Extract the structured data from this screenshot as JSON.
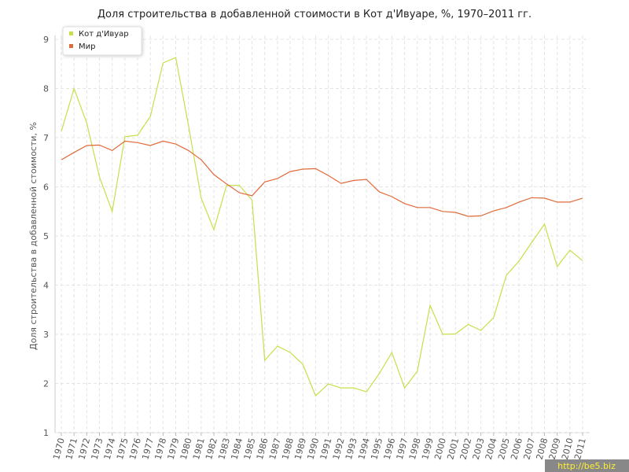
{
  "chart_data": {
    "type": "line",
    "title": "Доля строительства в добавленной стоимости в Кот д'Ивуаре, %, 1970–2011 гг.",
    "y_label": "Доля строительства в добавленной стоимости, %",
    "watermark": "http://be5.biz",
    "x": [
      1970,
      1971,
      1972,
      1973,
      1974,
      1975,
      1976,
      1977,
      1978,
      1979,
      1980,
      1981,
      1982,
      1983,
      1984,
      1985,
      1986,
      1987,
      1988,
      1989,
      1990,
      1991,
      1992,
      1993,
      1994,
      1995,
      1996,
      1997,
      1998,
      1999,
      2000,
      2001,
      2002,
      2003,
      2004,
      2005,
      2006,
      2007,
      2008,
      2009,
      2010,
      2011
    ],
    "xlim": [
      1970,
      2011
    ],
    "xticks": [
      1970,
      1971,
      1972,
      1973,
      1974,
      1975,
      1976,
      1977,
      1978,
      1979,
      1980,
      1981,
      1982,
      1983,
      1984,
      1985,
      1986,
      1987,
      1988,
      1989,
      1990,
      1991,
      1992,
      1993,
      1994,
      1995,
      1996,
      1997,
      1998,
      1999,
      2000,
      2001,
      2002,
      2003,
      2004,
      2005,
      2006,
      2007,
      2008,
      2009,
      2010,
      2011
    ],
    "ylim": [
      1,
      9
    ],
    "yticks": [
      1,
      2,
      3,
      4,
      5,
      6,
      7,
      8,
      9
    ],
    "grid": true,
    "legend": "top-left",
    "series": [
      {
        "name": "Кот д'Ивуар",
        "color": "#c5e04a",
        "values": [
          7.13,
          8.0,
          7.3,
          6.2,
          5.5,
          7.02,
          7.05,
          7.43,
          8.52,
          8.63,
          7.25,
          5.77,
          5.13,
          6.03,
          6.03,
          5.73,
          2.47,
          2.76,
          2.63,
          2.39,
          1.75,
          1.99,
          1.91,
          1.91,
          1.83,
          2.2,
          2.63,
          1.91,
          2.25,
          3.59,
          3.0,
          3.01,
          3.2,
          3.08,
          3.34,
          4.2,
          4.49,
          4.87,
          5.24,
          4.38,
          4.71,
          4.5
        ]
      },
      {
        "name": "Мир",
        "color": "#e06a3a",
        "values": [
          6.55,
          6.7,
          6.84,
          6.85,
          6.74,
          6.93,
          6.9,
          6.84,
          6.93,
          6.87,
          6.74,
          6.55,
          6.25,
          6.06,
          5.88,
          5.82,
          6.1,
          6.17,
          6.31,
          6.36,
          6.37,
          6.23,
          6.07,
          6.13,
          6.15,
          5.9,
          5.8,
          5.66,
          5.58,
          5.58,
          5.5,
          5.48,
          5.4,
          5.41,
          5.51,
          5.58,
          5.69,
          5.78,
          5.77,
          5.69,
          5.69,
          5.77
        ]
      }
    ]
  }
}
